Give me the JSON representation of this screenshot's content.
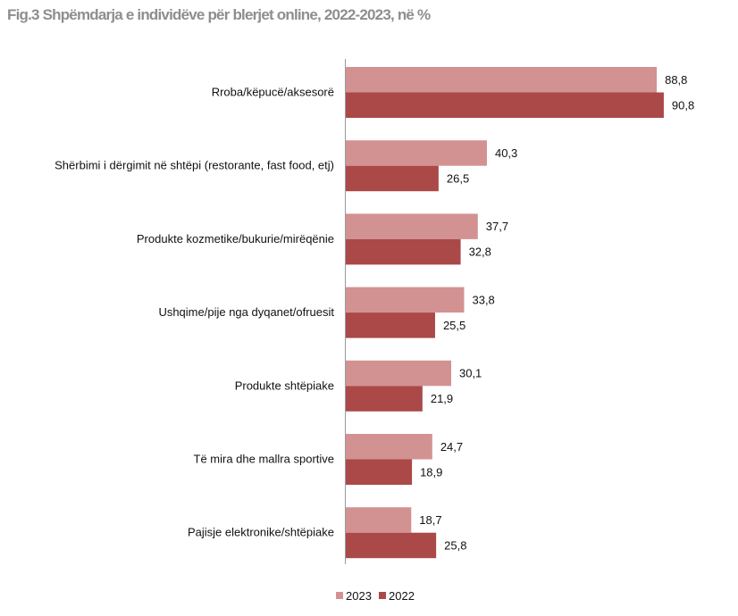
{
  "title": "Fig.3 Shpëmdarja e individëve për blerjet online, 2022-2023, në %",
  "chart_data": {
    "type": "bar",
    "orientation": "horizontal",
    "categories": [
      "Rroba/këpucë/aksesorë",
      "Shërbimi i dërgimit në shtëpi (restorante, fast food, etj)",
      "Produkte kozmetike/bukurie/mirëqënie",
      "Ushqime/pije nga dyqanet/ofruesit",
      "Produkte shtëpiake",
      "Të mira dhe mallra sportive",
      "Pajisje elektronike/shtëpiake"
    ],
    "series": [
      {
        "name": "2023",
        "color": "#d39292",
        "values": [
          88.8,
          40.3,
          37.7,
          33.8,
          30.1,
          24.7,
          18.7
        ],
        "labels": [
          "88,8",
          "40,3",
          "37,7",
          "33,8",
          "30,1",
          "24,7",
          "18,7"
        ]
      },
      {
        "name": "2022",
        "color": "#ab4848",
        "values": [
          90.8,
          26.5,
          32.8,
          25.5,
          21.9,
          18.9,
          25.8
        ],
        "labels": [
          "90,8",
          "26,5",
          "32,8",
          "25,5",
          "21,9",
          "18,9",
          "25,8"
        ]
      }
    ],
    "xlim": [
      0,
      100
    ],
    "grid": false,
    "legend_position": "bottom"
  }
}
